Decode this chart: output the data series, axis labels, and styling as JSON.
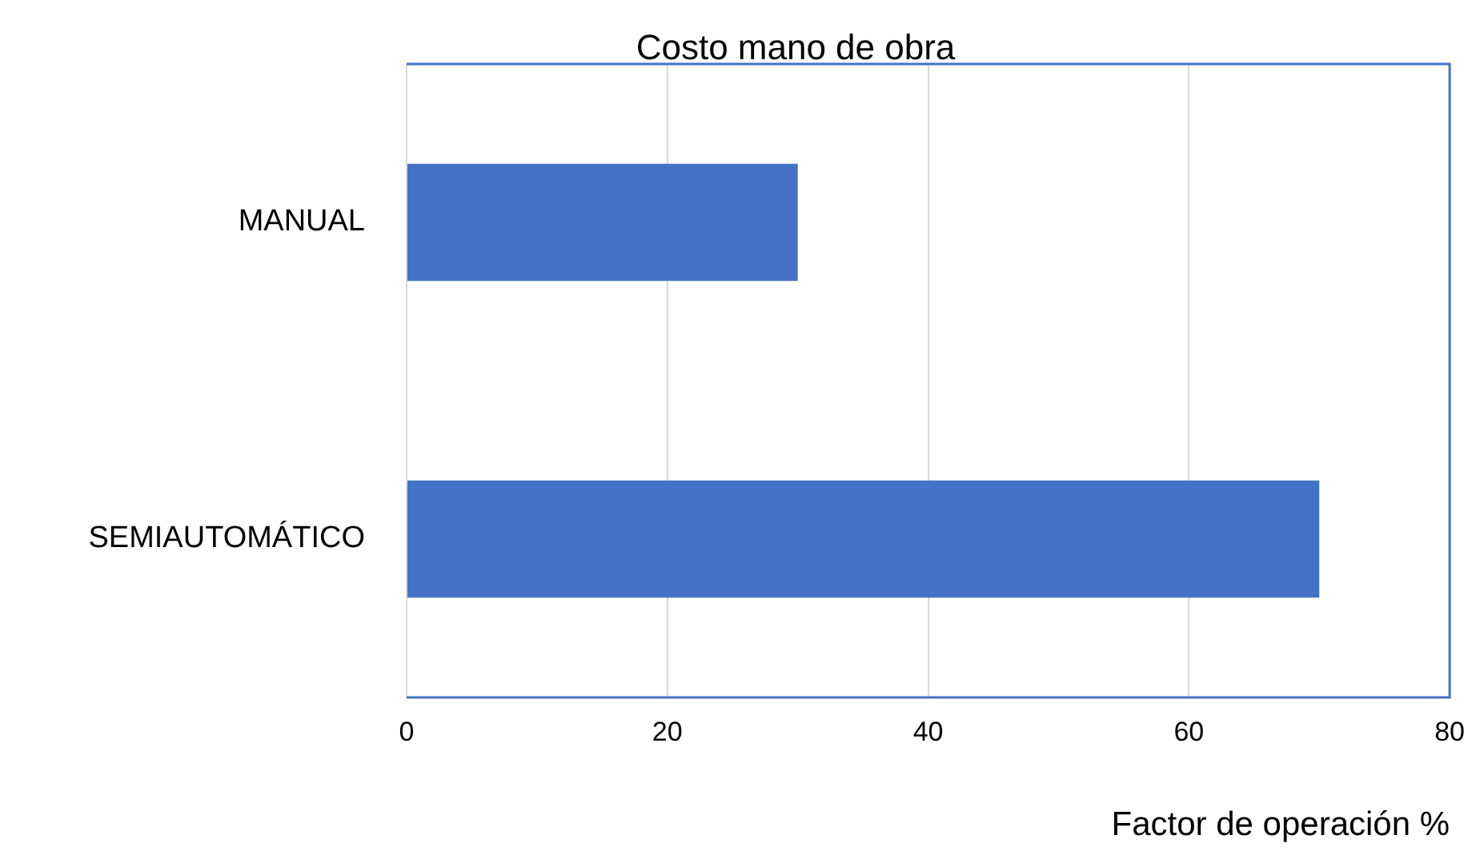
{
  "chart_data": {
    "type": "bar",
    "title": "Costo mano de obra",
    "xlabel": "Factor de operación %",
    "categories": [
      "MANUAL",
      "SEMIAUTOMÁTICO"
    ],
    "values": [
      30,
      70
    ],
    "color": "#4472c4",
    "orientation": "horizontal",
    "xlim": [
      0,
      80
    ],
    "xticks": [
      0,
      20,
      40,
      60,
      80
    ],
    "grid": "x"
  }
}
